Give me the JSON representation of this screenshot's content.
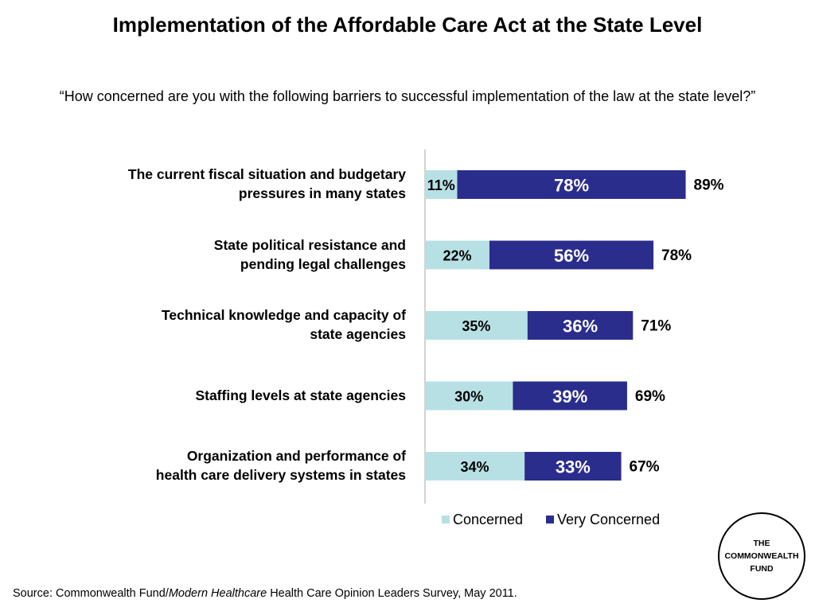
{
  "title": "Implementation of the Affordable Care Act at the State Level",
  "question": "“How concerned are you with the following barriers to successful implementation of the law at the state level?”",
  "source": {
    "prefix": "Source: Commonwealth Fund/",
    "italic": "Modern Healthcare",
    "suffix": " Health Care Opinion Leaders Survey, May 2011."
  },
  "logo": {
    "text": "THE\nCOMMONWEALTH\nFUND"
  },
  "colors": {
    "concerned": "#b7e0e4",
    "very_concerned": "#2b2d8d"
  },
  "chart_data": {
    "type": "bar",
    "orientation": "horizontal",
    "stacked": true,
    "categories": [
      [
        "The current fiscal situation and budgetary",
        "pressures in many states"
      ],
      [
        "State political resistance and",
        "pending legal challenges"
      ],
      [
        "Technical knowledge and capacity of",
        "state agencies"
      ],
      [
        "Staffing levels at state agencies"
      ],
      [
        "Organization and performance of",
        "health care delivery systems in states"
      ]
    ],
    "series": [
      {
        "name": "Concerned",
        "values": [
          11,
          22,
          35,
          30,
          34
        ]
      },
      {
        "name": "Very Concerned",
        "values": [
          78,
          56,
          36,
          39,
          33
        ]
      }
    ],
    "data_labels": {
      "concerned": [
        "11%",
        "22%",
        "35%",
        "30%",
        "34%"
      ],
      "very_concerned": [
        "78%",
        "56%",
        "36%",
        "39%",
        "33%"
      ],
      "totals": [
        "89%",
        "78%",
        "71%",
        "69%",
        "67%"
      ]
    },
    "xlim": [
      0,
      100
    ],
    "grid": false,
    "legend": "bottom"
  }
}
